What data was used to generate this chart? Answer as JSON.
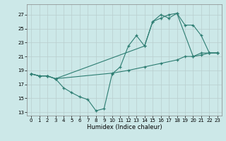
{
  "xlabel": "Humidex (Indice chaleur)",
  "xlim": [
    -0.5,
    23.5
  ],
  "ylim": [
    12.5,
    28.5
  ],
  "yticks": [
    13,
    15,
    17,
    19,
    21,
    23,
    25,
    27
  ],
  "xticks": [
    0,
    1,
    2,
    3,
    4,
    5,
    6,
    7,
    8,
    9,
    10,
    11,
    12,
    13,
    14,
    15,
    16,
    17,
    18,
    19,
    20,
    21,
    22,
    23
  ],
  "bg_color": "#cce8e8",
  "line_color": "#2d7d72",
  "line1_x": [
    0,
    1,
    2,
    3,
    4,
    5,
    6,
    7,
    8,
    9,
    10,
    11,
    12,
    13,
    14,
    15,
    16,
    17,
    18,
    19,
    20,
    21,
    22,
    23
  ],
  "line1_y": [
    18.5,
    18.2,
    18.2,
    17.8,
    16.5,
    15.8,
    15.2,
    14.8,
    13.2,
    13.5,
    18.5,
    19.5,
    22.5,
    24.0,
    22.5,
    26.0,
    26.5,
    27.0,
    27.2,
    25.5,
    25.5,
    24.0,
    21.5,
    21.5
  ],
  "line2_x": [
    0,
    1,
    2,
    3,
    14,
    15,
    16,
    17,
    18,
    20,
    21,
    22,
    23
  ],
  "line2_y": [
    18.5,
    18.2,
    18.2,
    17.8,
    22.5,
    26.0,
    27.0,
    26.5,
    27.2,
    21.0,
    21.5,
    21.5,
    21.5
  ],
  "line3_x": [
    0,
    1,
    2,
    3,
    10,
    12,
    14,
    16,
    18,
    19,
    20,
    21,
    22,
    23
  ],
  "line3_y": [
    18.5,
    18.2,
    18.2,
    17.8,
    18.6,
    19.0,
    19.5,
    20.0,
    20.5,
    21.0,
    21.0,
    21.2,
    21.5,
    21.5
  ]
}
